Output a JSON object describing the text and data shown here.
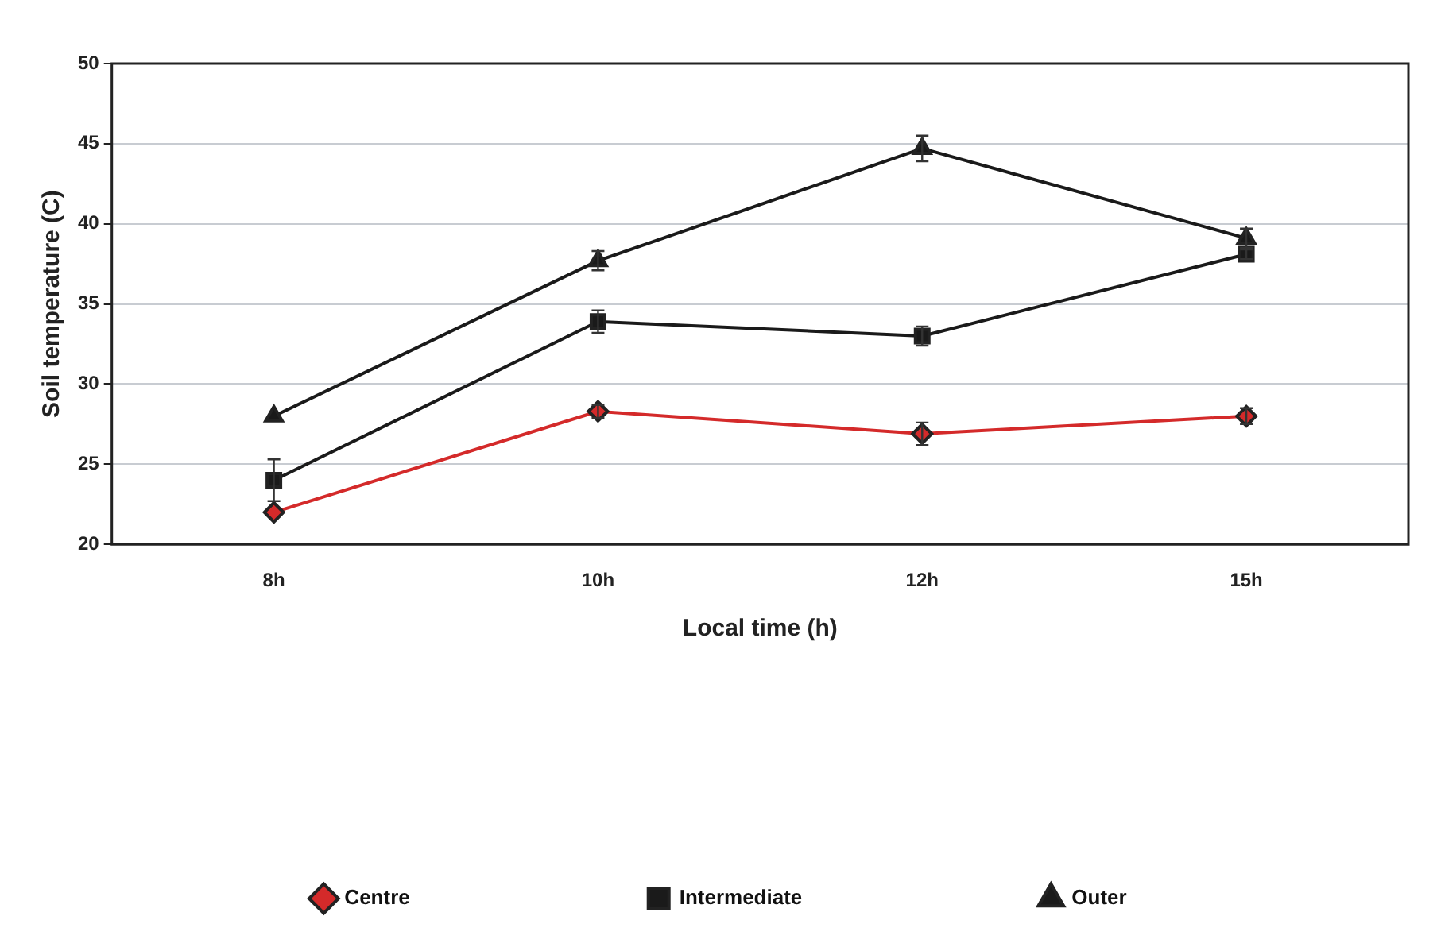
{
  "chart_data": {
    "type": "line",
    "xlabel": "Local time (h)",
    "ylabel": "Soil temperature (C)",
    "categories": [
      "8h",
      "10h",
      "12h",
      "15h"
    ],
    "ylim": [
      20,
      50
    ],
    "yticks": [
      20,
      25,
      30,
      35,
      40,
      45,
      50
    ],
    "grid": "y",
    "legend": "bottom",
    "series": [
      {
        "name": "Centre",
        "color": "#d42a2a",
        "marker": "diamond",
        "values": [
          22.0,
          28.3,
          26.9,
          28.0
        ],
        "errors": [
          null,
          0.4,
          0.7,
          0.5
        ]
      },
      {
        "name": "Intermediate",
        "color": "#1a1a1a",
        "marker": "square",
        "values": [
          24.0,
          33.9,
          33.0,
          38.1
        ],
        "errors": [
          1.3,
          0.7,
          0.6,
          0.3
        ]
      },
      {
        "name": "Outer",
        "color": "#1a1a1a",
        "marker": "triangle",
        "values": [
          28.0,
          37.7,
          44.7,
          39.1
        ],
        "errors": [
          null,
          0.6,
          0.8,
          0.6
        ]
      }
    ]
  }
}
